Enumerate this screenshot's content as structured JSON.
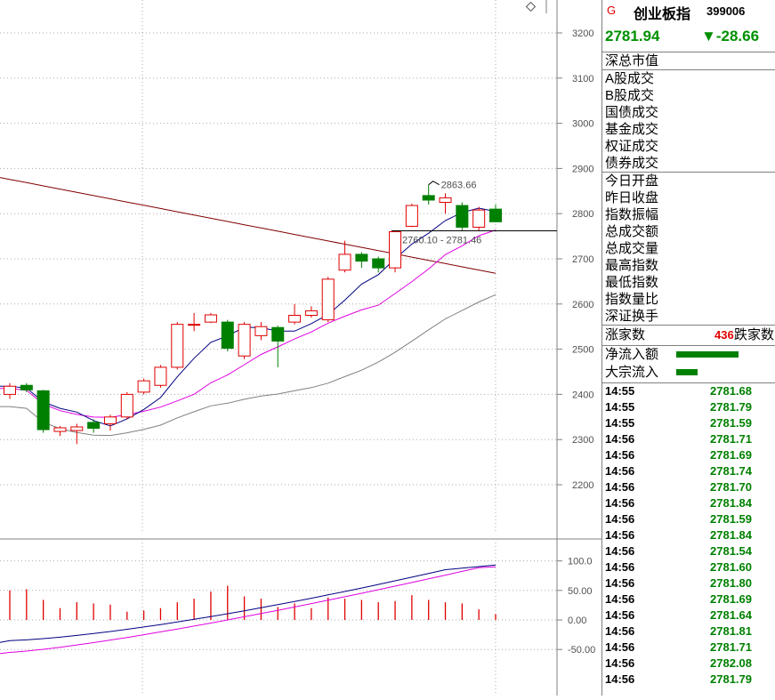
{
  "chart_data": {
    "type": "candlestick",
    "price_axis": {
      "ticks": [
        2200,
        2300,
        2400,
        2500,
        2600,
        2700,
        2800,
        2900,
        3000,
        3100,
        3200
      ],
      "range": [
        2100,
        3250
      ]
    },
    "candles": [
      {
        "o": 2400,
        "h": 2425,
        "l": 2390,
        "c": 2418
      },
      {
        "o": 2420,
        "h": 2425,
        "l": 2405,
        "c": 2410
      },
      {
        "o": 2408,
        "h": 2410,
        "l": 2315,
        "c": 2322
      },
      {
        "o": 2318,
        "h": 2330,
        "l": 2308,
        "c": 2326
      },
      {
        "o": 2320,
        "h": 2335,
        "l": 2290,
        "c": 2328
      },
      {
        "o": 2338,
        "h": 2345,
        "l": 2315,
        "c": 2325
      },
      {
        "o": 2335,
        "h": 2355,
        "l": 2320,
        "c": 2350
      },
      {
        "o": 2350,
        "h": 2405,
        "l": 2345,
        "c": 2400
      },
      {
        "o": 2405,
        "h": 2435,
        "l": 2400,
        "c": 2430
      },
      {
        "o": 2420,
        "h": 2465,
        "l": 2415,
        "c": 2460
      },
      {
        "o": 2460,
        "h": 2560,
        "l": 2455,
        "c": 2555
      },
      {
        "o": 2555,
        "h": 2580,
        "l": 2540,
        "c": 2555
      },
      {
        "o": 2560,
        "h": 2580,
        "l": 2558,
        "c": 2576
      },
      {
        "o": 2560,
        "h": 2565,
        "l": 2495,
        "c": 2502
      },
      {
        "o": 2485,
        "h": 2560,
        "l": 2478,
        "c": 2555
      },
      {
        "o": 2530,
        "h": 2560,
        "l": 2520,
        "c": 2550
      },
      {
        "o": 2548,
        "h": 2552,
        "l": 2460,
        "c": 2518
      },
      {
        "o": 2560,
        "h": 2600,
        "l": 2555,
        "c": 2575
      },
      {
        "o": 2575,
        "h": 2595,
        "l": 2570,
        "c": 2585
      },
      {
        "o": 2565,
        "h": 2660,
        "l": 2560,
        "c": 2655
      },
      {
        "o": 2675,
        "h": 2740,
        "l": 2670,
        "c": 2710
      },
      {
        "o": 2710,
        "h": 2715,
        "l": 2680,
        "c": 2695
      },
      {
        "o": 2700,
        "h": 2705,
        "l": 2670,
        "c": 2680
      },
      {
        "o": 2680,
        "h": 2762,
        "l": 2670,
        "c": 2760
      },
      {
        "o": 2772,
        "h": 2822,
        "l": 2770,
        "c": 2818
      },
      {
        "o": 2840,
        "h": 2864,
        "l": 2820,
        "c": 2830
      },
      {
        "o": 2825,
        "h": 2845,
        "l": 2800,
        "c": 2835
      },
      {
        "o": 2818,
        "h": 2825,
        "l": 2762,
        "c": 2770
      },
      {
        "o": 2770,
        "h": 2815,
        "l": 2762,
        "c": 2808
      },
      {
        "o": 2810,
        "h": 2820,
        "l": 2781,
        "c": 2782
      }
    ],
    "annotations": {
      "high_label": "2863.66",
      "range_label": "2760.10 - 2781.46"
    },
    "indicator_axis": {
      "ticks": [
        100.0,
        50.0,
        0.0,
        -50.0
      ],
      "tick_labels": [
        "100.0",
        "50.00",
        "0.00",
        "-50.00"
      ]
    }
  },
  "panel": {
    "g_marker": "G",
    "name": "创业板指",
    "code": "399006",
    "price": "2781.94",
    "change": "▼-28.66",
    "labels_a": [
      "深总市值"
    ],
    "labels_b": [
      "A股成交",
      "B股成交",
      "国债成交",
      "基金成交",
      "权证成交",
      "债券成交"
    ],
    "labels_c": [
      "今日开盘",
      "昨日收盘",
      "指数振幅",
      "总成交额",
      "总成交量",
      "最高指数",
      "最低指数",
      "指数量比",
      "深证换手"
    ],
    "up_label": "涨家数",
    "up_count": "436",
    "down_label": "跌家数",
    "flow_in": "净流入额",
    "flow_block": "大宗流入",
    "ticks": [
      {
        "t": "14:55",
        "p": "2781.68"
      },
      {
        "t": "14:55",
        "p": "2781.79"
      },
      {
        "t": "14:55",
        "p": "2781.59"
      },
      {
        "t": "14:56",
        "p": "2781.71"
      },
      {
        "t": "14:56",
        "p": "2781.69"
      },
      {
        "t": "14:56",
        "p": "2781.74"
      },
      {
        "t": "14:56",
        "p": "2781.70"
      },
      {
        "t": "14:56",
        "p": "2781.84"
      },
      {
        "t": "14:56",
        "p": "2781.59"
      },
      {
        "t": "14:56",
        "p": "2781.84"
      },
      {
        "t": "14:56",
        "p": "2781.54"
      },
      {
        "t": "14:56",
        "p": "2781.60"
      },
      {
        "t": "14:56",
        "p": "2781.80"
      },
      {
        "t": "14:56",
        "p": "2781.69"
      },
      {
        "t": "14:56",
        "p": "2781.64"
      },
      {
        "t": "14:56",
        "p": "2781.81"
      },
      {
        "t": "14:56",
        "p": "2781.71"
      },
      {
        "t": "14:56",
        "p": "2782.08"
      },
      {
        "t": "14:56",
        "p": "2781.79"
      }
    ],
    "colors": {
      "up": "#e00000",
      "down": "#008000",
      "ma5": "#000080",
      "ma10": "#e000e0",
      "ma20": "#808080",
      "ma_long": "#800000"
    }
  }
}
